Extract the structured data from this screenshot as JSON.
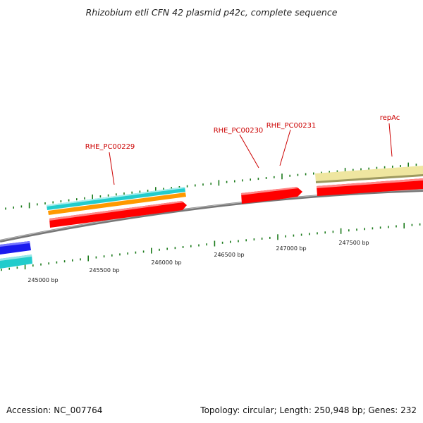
{
  "title": "Rhizobium etli CFN 42 plasmid p42c, complete sequence",
  "footer": {
    "accession": "Accession: NC_007764",
    "stats": "Topology: circular; Length: 250,948 bp; Genes: 232"
  },
  "colors": {
    "backbone": "#8a8a8a",
    "gene_red": "#ff0000",
    "gene_cyan": "#22cccc",
    "gene_orange": "#ff9900",
    "gene_blue": "#1a1aee",
    "gene_khaki": "#efe6a0",
    "tick_green": "#1a7a1a",
    "label_red": "#cc0000"
  },
  "gene_labels": [
    {
      "id": "RHE_PC00229",
      "label": "RHE_PC00229"
    },
    {
      "id": "RHE_PC00230",
      "label": "RHE_PC00230"
    },
    {
      "id": "RHE_PC00231",
      "label": "RHE_PC00231"
    },
    {
      "id": "repAc",
      "label": "repAc"
    }
  ],
  "bp_ticks": [
    {
      "bp": 245000,
      "label": "245000 bp"
    },
    {
      "bp": 245500,
      "label": "245500 bp"
    },
    {
      "bp": 246000,
      "label": "246000 bp"
    },
    {
      "bp": 246500,
      "label": "246500 bp"
    },
    {
      "bp": 247000,
      "label": "247000 bp"
    },
    {
      "bp": 247500,
      "label": "247500 bp"
    }
  ]
}
